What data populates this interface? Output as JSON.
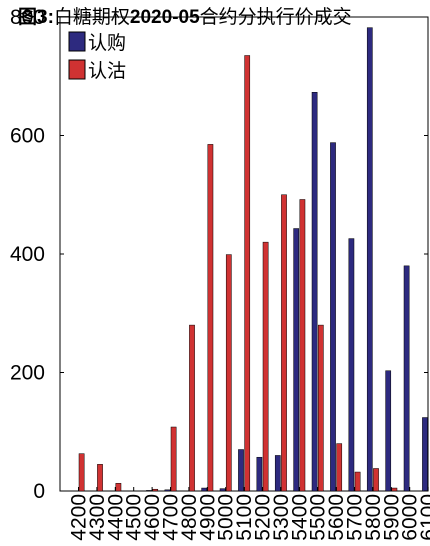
{
  "chart_data": {
    "type": "bar",
    "title": {
      "prefix": "图3:",
      "part1": "白糖期权",
      "bold": "2020-05",
      "part2": "合约分执行价成交"
    },
    "xlabel": "",
    "ylabel": "",
    "ylim": [
      0,
      800
    ],
    "yticks": [
      0,
      200,
      400,
      600,
      800
    ],
    "grid": false,
    "legend_position": "top-left",
    "categories": [
      "4200",
      "4300",
      "4400",
      "4500",
      "4600",
      "4700",
      "4800",
      "4900",
      "5000",
      "5100",
      "5200",
      "5300",
      "5400",
      "5500",
      "5600",
      "5700",
      "5800",
      "5900",
      "6000",
      "6100"
    ],
    "series": [
      {
        "name": "认购",
        "color": "#2d2a7f",
        "values": [
          0,
          0,
          0,
          0,
          1,
          2,
          0,
          5,
          4,
          70,
          57,
          60,
          443,
          673,
          588,
          426,
          782,
          203,
          380,
          124
        ]
      },
      {
        "name": "认沽",
        "color": "#d03232",
        "values": [
          63,
          45,
          13,
          0,
          3,
          108,
          280,
          585,
          399,
          735,
          420,
          500,
          492,
          280,
          80,
          32,
          38,
          5,
          0,
          0
        ]
      }
    ]
  }
}
